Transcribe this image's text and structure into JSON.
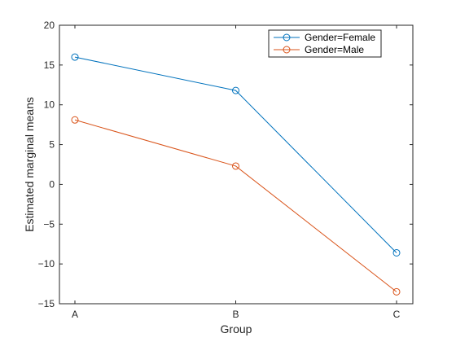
{
  "chart_data": {
    "type": "line",
    "title": "",
    "xlabel": "Group",
    "ylabel": "Estimated marginal means",
    "categories": [
      "A",
      "B",
      "C"
    ],
    "ylim": [
      -15,
      20
    ],
    "yticks": [
      -15,
      -10,
      -5,
      0,
      5,
      10,
      15,
      20
    ],
    "grid": false,
    "legend_position": "top-right",
    "series": [
      {
        "name": "Gender=Female",
        "color": "#0072BD",
        "marker": "circle",
        "values": [
          16.0,
          11.8,
          -8.6
        ]
      },
      {
        "name": "Gender=Male",
        "color": "#D95319",
        "marker": "circle",
        "values": [
          8.1,
          2.3,
          -13.5
        ]
      }
    ]
  }
}
